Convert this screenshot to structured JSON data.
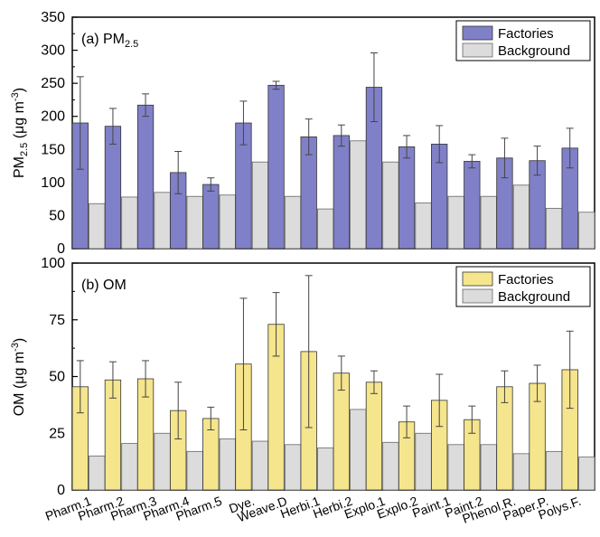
{
  "chart_data": [
    {
      "type": "bar",
      "panel_label": "(b) OM",
      "panel_label_text": "(b) OM",
      "ylabel": "OM (μg m⁻³)",
      "ylabel_text": "OM (μg m",
      "ylabel_exp": "-3",
      "ylabel_close": ")",
      "ylim": [
        0,
        100
      ],
      "yticks": [
        0,
        25,
        50,
        75,
        100
      ],
      "grid": false,
      "legend_position": "top-right",
      "categories": [
        "Pharm.1",
        "Pharm.2",
        "Pharm.3",
        "Pharm.4",
        "Pharm.5",
        "Dye.",
        "Weave.D",
        "Herbi.1",
        "Herbi.2",
        "Explo.1",
        "Explo.2",
        "Paint.1",
        "Paint.2",
        "Phenol.R.",
        "Paper.P.",
        "Polys.F."
      ],
      "series": [
        {
          "name": "Factories",
          "color": "#f5e58c",
          "values": [
            45.5,
            48.5,
            49,
            35,
            31.5,
            55.5,
            73,
            61,
            51.5,
            47.5,
            30,
            39.5,
            31,
            45.5,
            47,
            53
          ],
          "error": [
            11.5,
            8,
            8,
            12.5,
            5,
            29,
            14,
            33.5,
            7.5,
            5,
            7,
            11.5,
            6,
            7,
            8,
            17
          ]
        },
        {
          "name": "Background",
          "color": "#dcdcdc",
          "values": [
            15,
            20.5,
            25,
            17,
            22.5,
            21.5,
            20,
            18.5,
            35.5,
            21,
            25,
            20,
            20,
            16,
            17,
            14.5
          ]
        }
      ]
    },
    {
      "type": "bar",
      "panel_label": "(a) PM₂.₅",
      "panel_label_text": "(a) PM",
      "panel_label_sub": "2.5",
      "ylabel": "PM₂.₅ (μg m⁻³)",
      "ylabel_text": "PM",
      "ylabel_sub": "2.5",
      "ylabel_mid": " (μg m",
      "ylabel_exp": "-3",
      "ylabel_close": ")",
      "ylim": [
        0,
        350
      ],
      "yticks": [
        0,
        50,
        100,
        150,
        200,
        250,
        300,
        350
      ],
      "grid": false,
      "legend_position": "top-right",
      "series": [
        {
          "name": "Factories",
          "color": "#8080c8",
          "values": [
            190,
            185,
            217,
            115,
            97,
            190,
            247,
            169,
            171,
            244,
            154,
            158,
            132,
            137,
            133,
            152
          ],
          "error": [
            70,
            27,
            17,
            32,
            10,
            33,
            6,
            27,
            16,
            52,
            17,
            28,
            10,
            30,
            22,
            30
          ]
        },
        {
          "name": "Background",
          "color": "#dcdcdc",
          "values": [
            68,
            78,
            85,
            79,
            81,
            131,
            79,
            60,
            163,
            131,
            69,
            79,
            79,
            96,
            61,
            55
          ]
        }
      ]
    }
  ]
}
